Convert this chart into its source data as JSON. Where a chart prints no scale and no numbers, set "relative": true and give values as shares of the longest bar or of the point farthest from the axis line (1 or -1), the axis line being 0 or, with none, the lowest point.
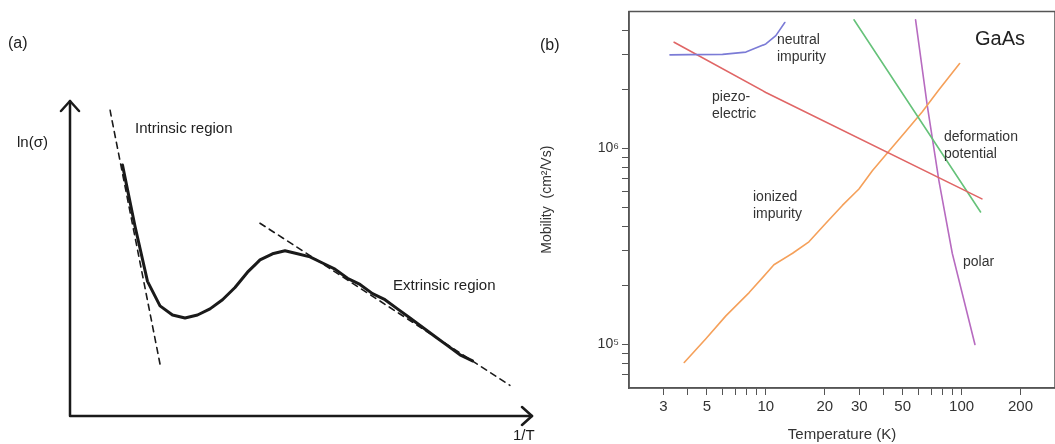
{
  "chart_data": [
    {
      "type": "line",
      "relative": true,
      "xlabel": "1/T",
      "ylabel": "ln(σ)",
      "annotations": [
        "(a)",
        "Intrinsic region",
        "Extrinsic region"
      ],
      "categories": [
        null,
        null,
        null,
        null,
        null,
        null,
        null,
        null,
        null,
        null,
        null,
        null,
        null,
        null,
        null,
        null,
        null,
        null,
        null,
        null,
        null,
        null,
        null,
        null,
        null,
        null,
        null,
        null,
        null,
        null,
        null,
        null,
        null
      ],
      "series": [
        {
          "color": "#1a1a1a",
          "line_style": "dashed",
          "values": [
            1.0,
            null,
            null,
            null,
            0.17,
            null,
            null,
            null,
            null,
            null,
            null,
            null,
            null,
            null,
            null,
            null,
            null,
            null,
            null,
            null,
            null,
            null,
            null,
            null,
            null,
            null,
            null,
            null,
            null,
            null,
            null,
            null,
            null
          ]
        },
        {
          "color": "#1a1a1a",
          "values": [
            null,
            0.82,
            0.62,
            0.44,
            0.36,
            0.33,
            0.32,
            0.33,
            0.35,
            0.38,
            0.42,
            0.47,
            0.51,
            0.53,
            0.54,
            0.53,
            0.52,
            0.5,
            0.48,
            0.45,
            0.43,
            0.4,
            0.38,
            0.35,
            0.32,
            0.29,
            0.26,
            0.23,
            0.2,
            0.18,
            null,
            null,
            null
          ]
        },
        {
          "color": "#1a1a1a",
          "line_style": "dashed",
          "values": [
            null,
            null,
            null,
            null,
            null,
            null,
            null,
            null,
            null,
            null,
            null,
            null,
            0.63,
            null,
            null,
            null,
            null,
            null,
            null,
            null,
            null,
            null,
            null,
            null,
            null,
            null,
            null,
            null,
            null,
            null,
            null,
            null,
            0.1
          ]
        }
      ]
    },
    {
      "type": "line",
      "xlabel": "Temperature (K)",
      "ylabel": "Mobility  (cm²/Vs)",
      "log": "xy",
      "annotations": [
        "(b)",
        "GaAs"
      ],
      "xlim": [
        2,
        300
      ],
      "xticks": [
        3,
        {
          "value": 4,
          "label": null
        },
        5,
        {
          "value": 6,
          "label": null
        },
        {
          "value": 7,
          "label": null
        },
        {
          "value": 8,
          "label": null
        },
        {
          "value": 9,
          "label": null
        },
        10,
        20,
        30,
        {
          "value": 40,
          "label": null
        },
        50,
        {
          "value": 60,
          "label": null
        },
        {
          "value": 70,
          "label": null
        },
        {
          "value": 80,
          "label": null
        },
        {
          "value": 90,
          "label": null
        },
        100,
        200
      ],
      "ylim": [
        60000,
        5000000
      ],
      "yticks": [
        {
          "value": 70000,
          "label": null
        },
        {
          "value": 80000,
          "label": null
        },
        {
          "value": 90000,
          "label": null
        },
        {
          "value": 100000,
          "label": "10⁵"
        },
        {
          "value": 200000,
          "label": null
        },
        {
          "value": 300000,
          "label": null
        },
        {
          "value": 400000,
          "label": null
        },
        {
          "value": 500000,
          "label": null
        },
        {
          "value": 600000,
          "label": null
        },
        {
          "value": 700000,
          "label": null
        },
        {
          "value": 800000,
          "label": null
        },
        {
          "value": 900000,
          "label": null
        },
        {
          "value": 1000000,
          "label": "10⁶"
        },
        {
          "value": 2000000,
          "label": null
        },
        {
          "value": 3000000,
          "label": null
        },
        {
          "value": 4000000,
          "label": null
        }
      ],
      "series": [
        {
          "name": "neutral impurity",
          "color": "#7b7bd6",
          "x": [
            3.24,
            4.06,
            6.01,
            7.91,
            10.0,
            11.25,
            12.5
          ],
          "values": [
            3000000,
            3010000,
            3020000,
            3100000,
            3410000,
            3760000,
            4390000
          ]
        },
        {
          "name": "piezo- electric",
          "color": "#e06666",
          "x": [
            3.4,
            10.0,
            127
          ],
          "values": [
            3480000,
            1930000,
            553000
          ]
        },
        {
          "name": "deformation potential",
          "color": "#66c27a",
          "x": [
            28.2,
            125
          ],
          "values": [
            4530000,
            474000
          ]
        },
        {
          "name": "ionized impurity",
          "color": "#f5a05a",
          "x": [
            3.83,
            4.94,
            6.25,
            8.22,
            11.0,
            13.7,
            16.6,
            20.2,
            24.6,
            29.9,
            35.0,
            42.6,
            51.8,
            63.0,
            76.6,
            97.7
          ],
          "values": [
            81000,
            107000,
            140000,
            184000,
            255000,
            292000,
            334000,
            414000,
            512000,
            621000,
            769000,
            970000,
            1220000,
            1540000,
            1990000,
            2710000
          ]
        },
        {
          "name": "polar",
          "color": "#b76bc0",
          "x": [
            58.2,
            66.7,
            76.6,
            89.6,
            117
          ],
          "values": [
            4530000,
            1670000,
            684000,
            292000,
            100000
          ]
        }
      ]
    }
  ]
}
